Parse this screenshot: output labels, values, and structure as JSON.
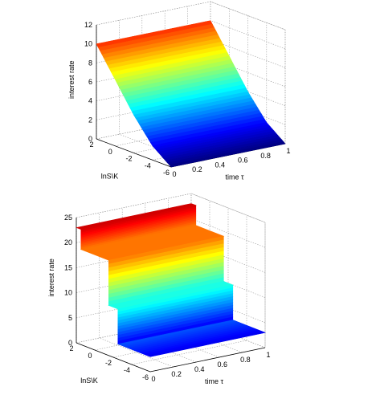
{
  "chart_data": [
    {
      "type": "surface",
      "ylabel": "interest rate",
      "xlabel": "time τ",
      "depth_label": "lnS\\K",
      "time_range": [
        0,
        1
      ],
      "lns_range": [
        -6,
        2
      ],
      "zlim": [
        0,
        12
      ],
      "time_ticks": [
        "0",
        "0.2",
        "0.4",
        "0.6",
        "0.8",
        "1"
      ],
      "lns_ticks": [
        "2",
        "0",
        "-2",
        "-4",
        "-6"
      ],
      "z_ticks": [
        "0",
        "2",
        "4",
        "6",
        "8",
        "10",
        "12"
      ],
      "surface": {
        "description_values": "rate rises smoothly with lnS\\K; nearly constant in time",
        "lns": [
          2,
          0,
          -2,
          -4,
          -6
        ],
        "rate_at_lns": [
          10,
          7,
          4,
          1.5,
          0
        ]
      },
      "grid": true,
      "colormap": "jet"
    },
    {
      "type": "surface",
      "ylabel": "interest rate",
      "xlabel": "time τ",
      "depth_label": "lnS\\K",
      "time_range": [
        0,
        1
      ],
      "lns_range": [
        -6,
        2
      ],
      "zlim": [
        0,
        25
      ],
      "time_ticks": [
        "0",
        "0.2",
        "0.4",
        "0.6",
        "0.8",
        "1"
      ],
      "lns_ticks": [
        "2",
        "0",
        "-2",
        "-4",
        "-6"
      ],
      "z_ticks": [
        "0",
        "5",
        "10",
        "15",
        "20",
        "25"
      ],
      "surface": {
        "description_values": "piecewise-constant rate regimes along lnS\\K",
        "regimes": [
          {
            "lns_from": 2,
            "lns_to": 1.5,
            "rate": 23
          },
          {
            "lns_from": 1.5,
            "lns_to": -1.5,
            "rate": 19
          },
          {
            "lns_from": -1.5,
            "lns_to": -2.5,
            "rate": 10
          },
          {
            "lns_from": -2.5,
            "lns_to": -6,
            "rate": 3
          }
        ]
      },
      "grid": true,
      "colormap": "jet"
    }
  ]
}
